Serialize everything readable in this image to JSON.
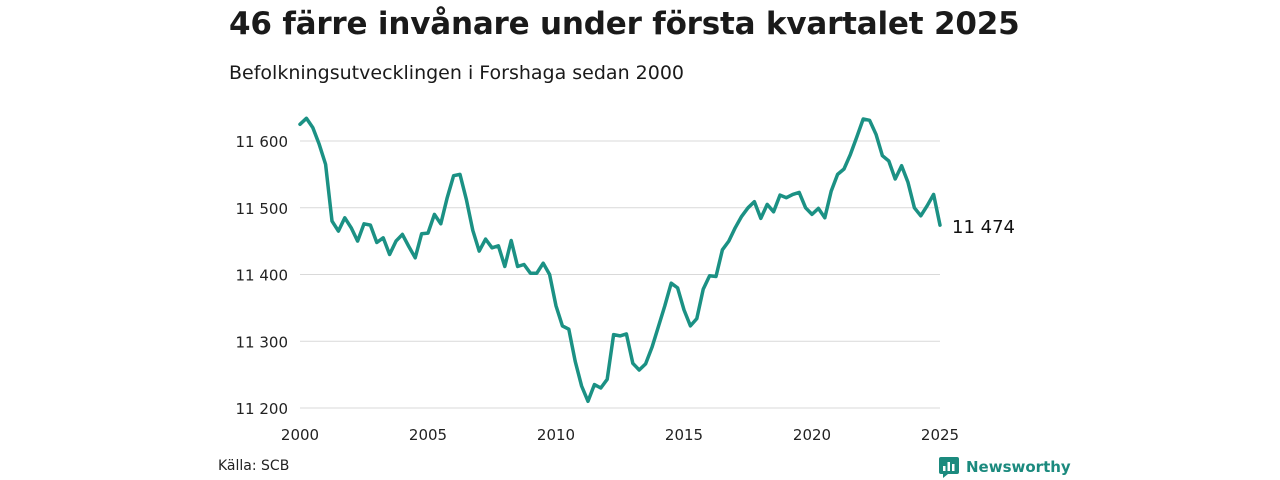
{
  "title": "46 färre invånare under första kvartalet 2025",
  "subtitle": "Befolkningsutvecklingen i Forshaga sedan 2000",
  "source": "Källa: SCB",
  "brand": "Newsworthy",
  "colors": {
    "line": "#1b9184",
    "grid": "#d9d9d9",
    "brand": "#1b8a7e"
  },
  "chart_data": {
    "type": "line",
    "title": "46 färre invånare under första kvartalet 2025",
    "xlim": [
      2000,
      2025
    ],
    "ylim": [
      11200,
      11600
    ],
    "yticks": [
      11200,
      11300,
      11400,
      11500,
      11600
    ],
    "ytick_labels": [
      "11 200",
      "11 300",
      "11 400",
      "11 500",
      "11 600"
    ],
    "xticks": [
      2000,
      2005,
      2010,
      2015,
      2020,
      2025
    ],
    "xtick_labels": [
      "2000",
      "2005",
      "2010",
      "2015",
      "2020",
      "2025"
    ],
    "grid": "horizontal",
    "end_label": "11 474",
    "series": [
      {
        "x": [
          2000.0,
          2000.25,
          2000.5,
          2000.75,
          2001.0,
          2001.25,
          2001.5,
          2001.75,
          2002.0,
          2002.25,
          2002.5,
          2002.75,
          2003.0,
          2003.25,
          2003.5,
          2003.75,
          2004.0,
          2004.25,
          2004.5,
          2004.75,
          2005.0,
          2005.25,
          2005.5,
          2005.75,
          2006.0,
          2006.25,
          2006.5,
          2006.75,
          2007.0,
          2007.25,
          2007.5,
          2007.75,
          2008.0,
          2008.25,
          2008.5,
          2008.75,
          2009.0,
          2009.25,
          2009.5,
          2009.75,
          2010.0,
          2010.25,
          2010.5,
          2010.75,
          2011.0,
          2011.25,
          2011.5,
          2011.75,
          2012.0,
          2012.25,
          2012.5,
          2012.75,
          2013.0,
          2013.25,
          2013.5,
          2013.75,
          2014.0,
          2014.25,
          2014.5,
          2014.75,
          2015.0,
          2015.25,
          2015.5,
          2015.75,
          2016.0,
          2016.25,
          2016.5,
          2016.75,
          2017.0,
          2017.25,
          2017.5,
          2017.75,
          2018.0,
          2018.25,
          2018.5,
          2018.75,
          2019.0,
          2019.25,
          2019.5,
          2019.75,
          2020.0,
          2020.25,
          2020.5,
          2020.75,
          2021.0,
          2021.25,
          2021.5,
          2021.75,
          2022.0,
          2022.25,
          2022.5,
          2022.75,
          2023.0,
          2023.25,
          2023.5,
          2023.75,
          2024.0,
          2024.25,
          2024.5,
          2024.75,
          2025.0
        ],
        "y": [
          11625,
          11634,
          11620,
          11595,
          11565,
          11480,
          11465,
          11485,
          11470,
          11450,
          11476,
          11474,
          11448,
          11455,
          11430,
          11450,
          11460,
          11442,
          11425,
          11461,
          11462,
          11490,
          11476,
          11515,
          11548,
          11550,
          11512,
          11466,
          11435,
          11453,
          11440,
          11443,
          11412,
          11451,
          11412,
          11415,
          11402,
          11402,
          11417,
          11400,
          11353,
          11323,
          11318,
          11270,
          11233,
          11210,
          11235,
          11230,
          11243,
          11310,
          11308,
          11311,
          11267,
          11257,
          11266,
          11291,
          11322,
          11353,
          11387,
          11380,
          11347,
          11323,
          11334,
          11378,
          11398,
          11397,
          11437,
          11450,
          11470,
          11487,
          11500,
          11509,
          11484,
          11505,
          11494,
          11519,
          11515,
          11520,
          11523,
          11500,
          11490,
          11499,
          11485,
          11525,
          11550,
          11558,
          11580,
          11606,
          11633,
          11631,
          11610,
          11578,
          11570,
          11543,
          11563,
          11538,
          11500,
          11488,
          11503,
          11520,
          11474
        ]
      }
    ]
  }
}
